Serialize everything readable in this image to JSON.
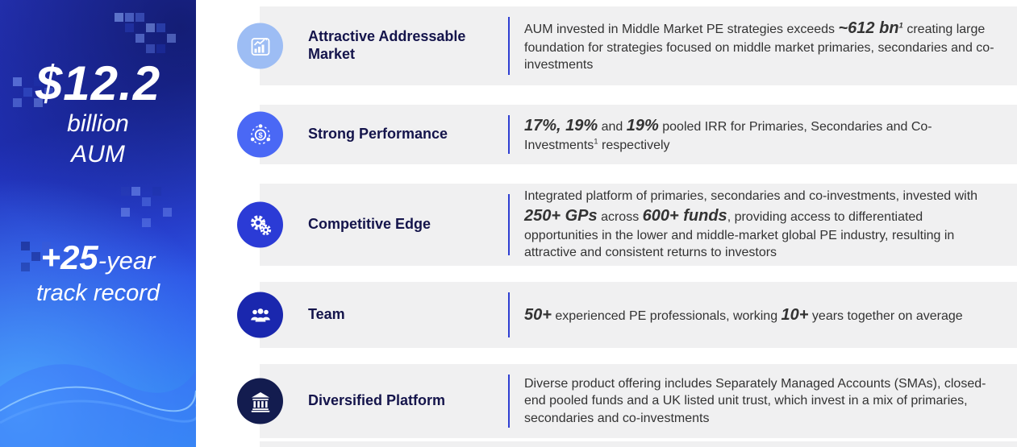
{
  "colors": {
    "divider": "#2E3ED2",
    "band": "#F0F0F1",
    "title": "#14144B",
    "body": "#333333"
  },
  "left_panel": {
    "aum_value": "$12.2",
    "aum_unit": "billion",
    "aum_label": "AUM",
    "track_bold": "+25",
    "track_rest": "-year",
    "track_line2": "track record"
  },
  "rows": [
    {
      "icon": "growth-chart-icon",
      "icon_bg": "#9DBDF4",
      "title": "Attractive Addressable Market",
      "desc": [
        {
          "t": "AUM invested in Middle Market PE strategies exceeds "
        },
        {
          "t": "~612 bn",
          "cls": "seg-big"
        },
        {
          "t": "1",
          "cls": "seg-big",
          "sup": true
        },
        {
          "t": " creating large foundation for strategies focused on middle market primaries, secondaries and co-investments"
        }
      ]
    },
    {
      "icon": "dollar-network-icon",
      "icon_bg": "#4A68F5",
      "title": "Strong Performance",
      "desc": [
        {
          "t": "17%, 19%",
          "cls": "seg-big"
        },
        {
          "t": " and "
        },
        {
          "t": "19%",
          "cls": "seg-big"
        },
        {
          "t": " pooled IRR for Primaries, Secondaries and Co-Investments"
        },
        {
          "t": "1",
          "sup": true
        },
        {
          "t": " respectively"
        }
      ]
    },
    {
      "icon": "gears-icon",
      "icon_bg": "#2B3BD6",
      "title": "Competitive Edge",
      "desc": [
        {
          "t": "Integrated platform of primaries, secondaries and co-investments, invested with "
        },
        {
          "t": "250+ GPs",
          "cls": "seg-big"
        },
        {
          "t": " across "
        },
        {
          "t": "600+ funds",
          "cls": "seg-big"
        },
        {
          "t": ", providing access to differentiated opportunities in the lower and middle-market global PE industry, resulting in attractive and consistent returns to investors"
        }
      ]
    },
    {
      "icon": "team-icon",
      "icon_bg": "#1A27AE",
      "title": "Team",
      "desc": [
        {
          "t": "50+",
          "cls": "seg-big"
        },
        {
          "t": " experienced PE professionals, working "
        },
        {
          "t": "10+",
          "cls": "seg-big"
        },
        {
          "t": " years together on average"
        }
      ]
    },
    {
      "icon": "bank-icon",
      "icon_bg": "#131C4F",
      "title": "Diversified Platform",
      "desc": [
        {
          "t": "Diverse product offering includes Separately Managed Accounts (SMAs), closed-end pooled funds and a UK listed unit trust, which invest in a mix of primaries, secondaries and co-investments"
        }
      ]
    }
  ]
}
